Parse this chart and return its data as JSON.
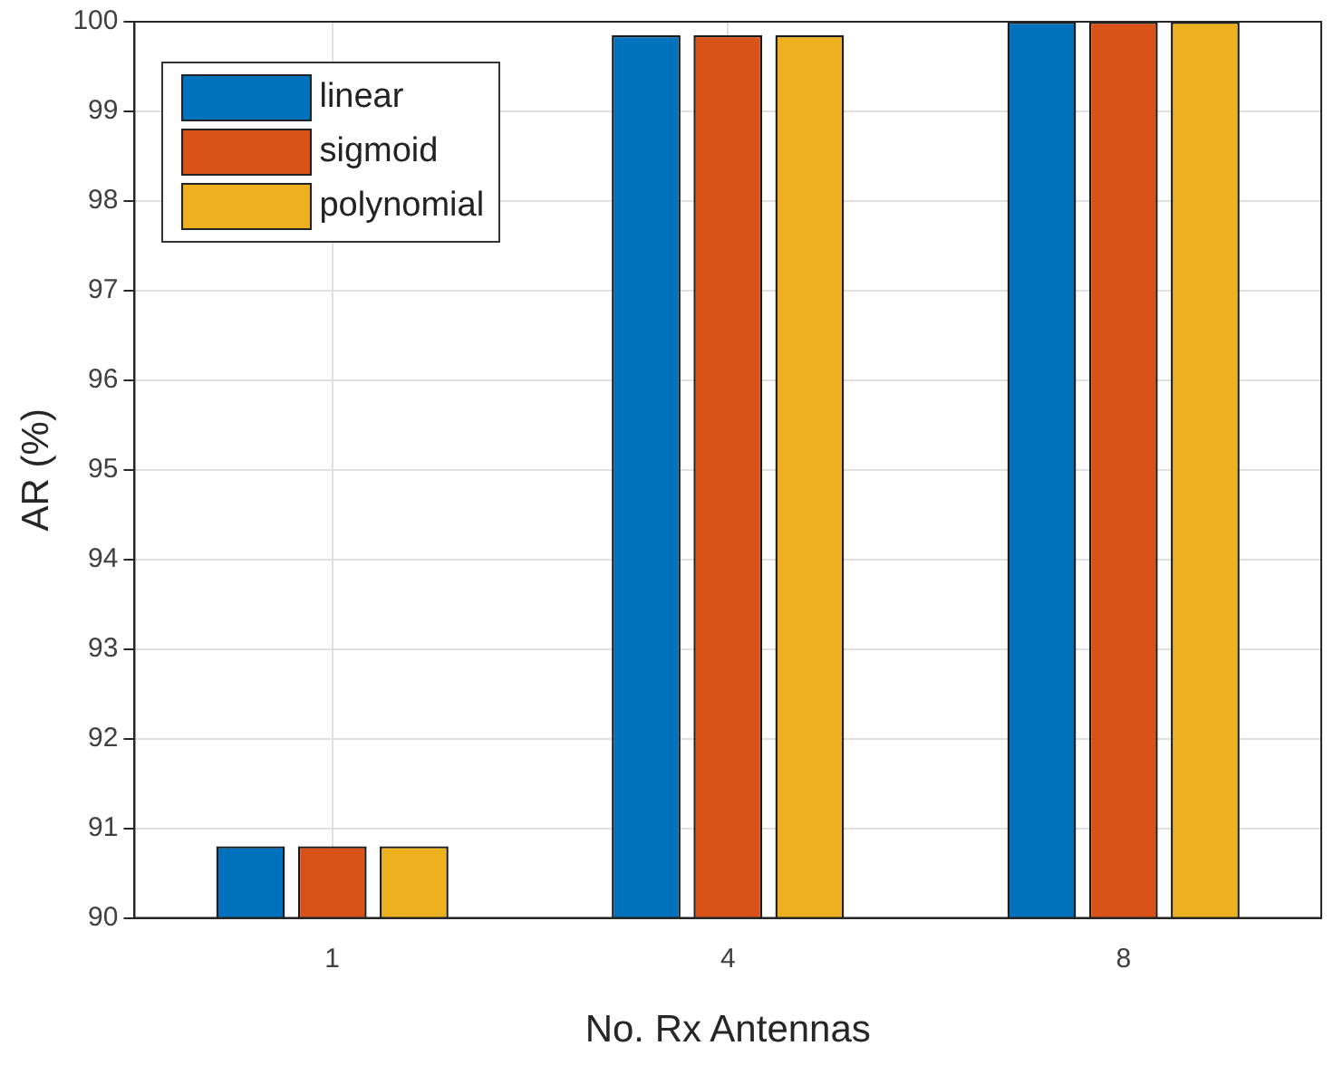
{
  "chart_data": {
    "type": "bar",
    "xlabel": "No. Rx Antennas",
    "ylabel": "AR (%)",
    "categories": [
      "1",
      "4",
      "8"
    ],
    "series": [
      {
        "name": "linear",
        "color": "#0072bd",
        "values": [
          90.8,
          99.85,
          100
        ]
      },
      {
        "name": "sigmoid",
        "color": "#d95319",
        "values": [
          90.8,
          99.85,
          100
        ]
      },
      {
        "name": "polynomial",
        "color": "#edb120",
        "values": [
          90.8,
          99.85,
          100
        ]
      }
    ],
    "ylim": [
      90,
      100
    ],
    "yticks": [
      90,
      91,
      92,
      93,
      94,
      95,
      96,
      97,
      98,
      99,
      100
    ],
    "grid": true,
    "legend": "top left"
  }
}
